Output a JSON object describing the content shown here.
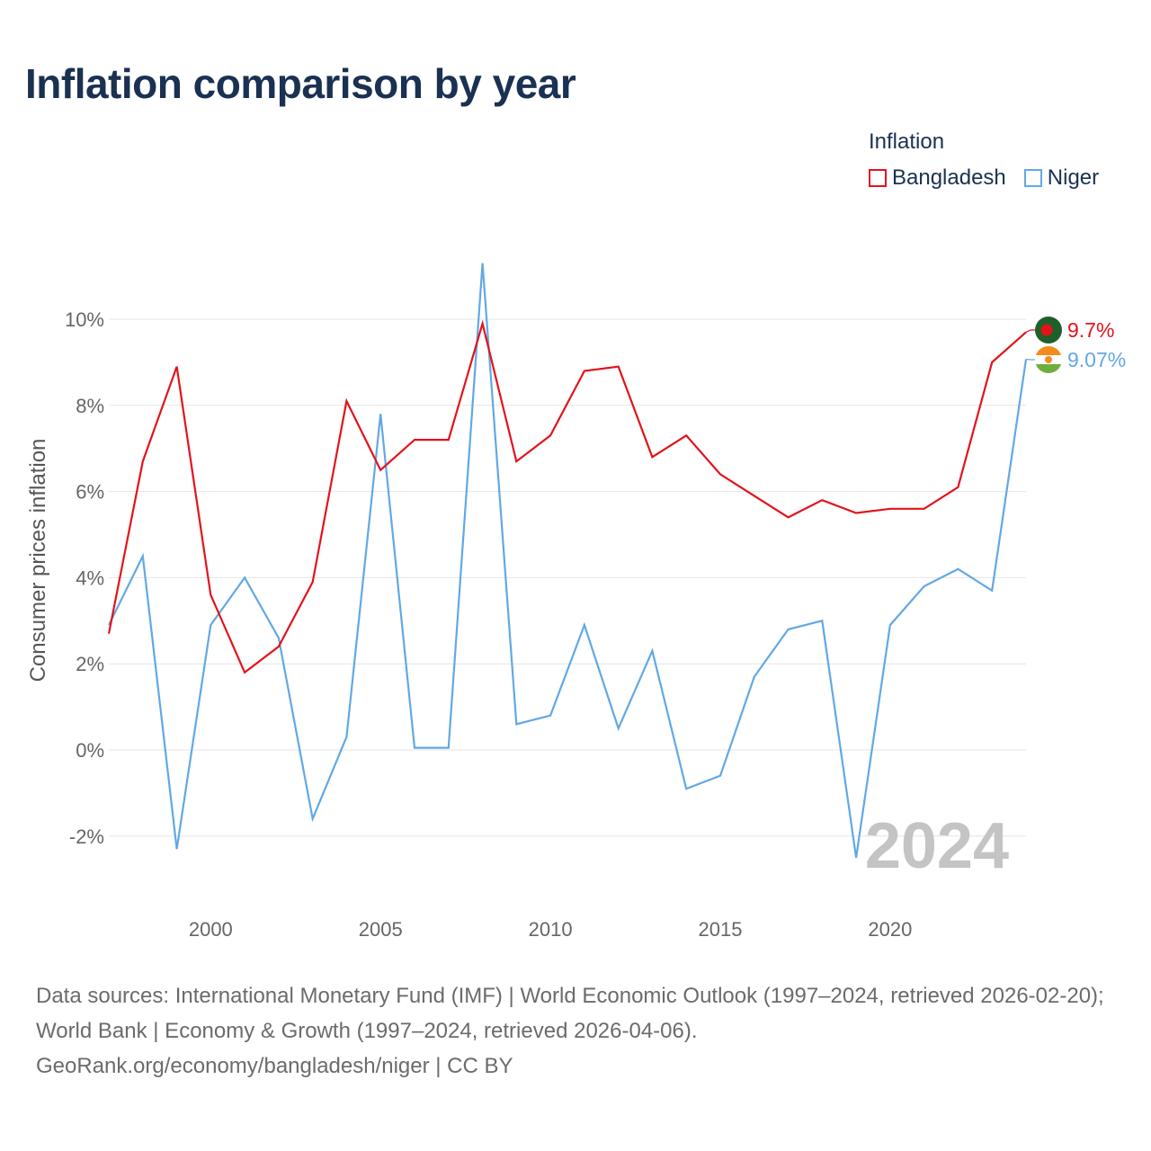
{
  "title": "Inflation comparison by year",
  "legend": {
    "title": "Inflation",
    "items": [
      {
        "name": "Bangladesh",
        "color": "#e3131b"
      },
      {
        "name": "Niger",
        "color": "#62a8e5"
      }
    ]
  },
  "chart_data": {
    "type": "line",
    "title": "Inflation comparison by year",
    "xlabel": "",
    "ylabel": "Consumer prices inflation",
    "xlim": [
      1997,
      2024
    ],
    "ylim": [
      -3.5,
      11.5
    ],
    "x_ticks": [
      2000,
      2005,
      2010,
      2015,
      2020
    ],
    "y_ticks": [
      -2,
      0,
      2,
      4,
      6,
      8,
      10
    ],
    "y_tick_labels": [
      "-2%",
      "0%",
      "2%",
      "4%",
      "6%",
      "8%",
      "10%"
    ],
    "grid": true,
    "legend_position": "top-right",
    "year_watermark": "2024",
    "x": [
      1997,
      1998,
      1999,
      2000,
      2001,
      2002,
      2003,
      2004,
      2005,
      2006,
      2007,
      2008,
      2009,
      2010,
      2011,
      2012,
      2013,
      2014,
      2015,
      2016,
      2017,
      2018,
      2019,
      2020,
      2021,
      2022,
      2023,
      2024
    ],
    "series": [
      {
        "name": "Bangladesh",
        "color": "#e3131b",
        "end_label": "9.7%",
        "values": [
          2.7,
          6.7,
          8.9,
          3.6,
          1.8,
          2.4,
          3.9,
          8.1,
          6.5,
          7.2,
          7.2,
          9.9,
          6.7,
          7.3,
          8.8,
          8.9,
          6.8,
          7.3,
          6.4,
          5.9,
          5.4,
          5.8,
          5.5,
          5.6,
          5.6,
          6.1,
          9.0,
          9.7
        ]
      },
      {
        "name": "Niger",
        "color": "#62a8e5",
        "end_label": "9.07%",
        "values": [
          2.9,
          4.5,
          -2.3,
          2.9,
          4.0,
          2.6,
          -1.6,
          0.3,
          7.8,
          0.05,
          0.05,
          11.3,
          0.6,
          0.8,
          2.9,
          0.5,
          2.3,
          -0.9,
          -0.6,
          1.7,
          2.8,
          3.0,
          -2.5,
          2.9,
          3.8,
          4.2,
          3.7,
          9.07
        ]
      }
    ]
  },
  "footer": {
    "line1": "Data sources: International Monetary Fund (IMF) | World Economic Outlook (1997–2024, retrieved 2026-02-20); World Bank | Economy & Growth (1997–2024, retrieved 2026-04-06).",
    "line2": "GeoRank.org/economy/bangladesh/niger | CC BY"
  }
}
